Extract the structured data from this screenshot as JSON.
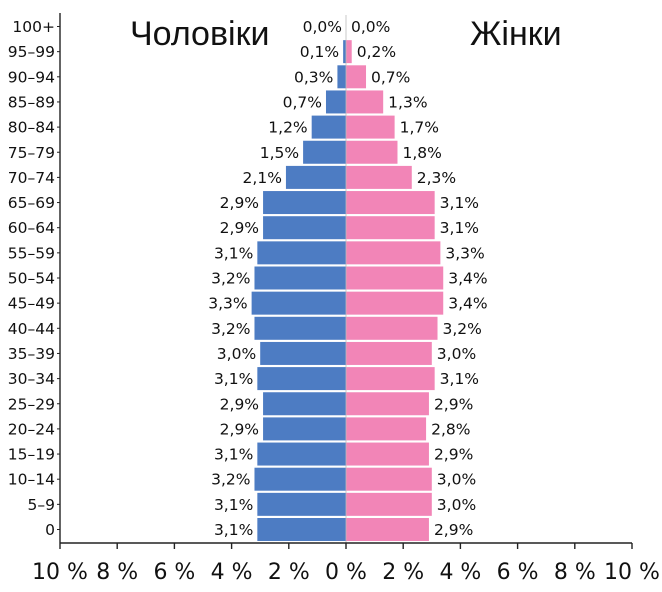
{
  "chart_data": {
    "type": "bar",
    "orientation": "horizontal",
    "layout": "population-pyramid",
    "categories": [
      "100+",
      "95–99",
      "90–94",
      "85–89",
      "80–84",
      "75–79",
      "70–74",
      "65–69",
      "60–64",
      "55–59",
      "50–54",
      "45–49",
      "40–44",
      "35–39",
      "30–34",
      "25–29",
      "20–24",
      "15–19",
      "10–14",
      "5–9",
      "0"
    ],
    "series": [
      {
        "name": "Чоловіки",
        "side": "left",
        "color": "#4d7cc3",
        "values": [
          0.0,
          0.1,
          0.3,
          0.7,
          1.2,
          1.5,
          2.1,
          2.9,
          2.9,
          3.1,
          3.2,
          3.3,
          3.2,
          3.0,
          3.1,
          2.9,
          2.9,
          3.1,
          3.2,
          3.1,
          3.1
        ],
        "labels": [
          "0,0%",
          "0,1%",
          "0,3%",
          "0,7%",
          "1,2%",
          "1,5%",
          "2,1%",
          "2,9%",
          "2,9%",
          "3,1%",
          "3,2%",
          "3,3%",
          "3,2%",
          "3,0%",
          "3,1%",
          "2,9%",
          "2,9%",
          "3,1%",
          "3,2%",
          "3,1%",
          "3,1%"
        ]
      },
      {
        "name": "Жінки",
        "side": "right",
        "color": "#f285b7",
        "values": [
          0.0,
          0.2,
          0.7,
          1.3,
          1.7,
          1.8,
          2.3,
          3.1,
          3.1,
          3.3,
          3.4,
          3.4,
          3.2,
          3.0,
          3.1,
          2.9,
          2.8,
          2.9,
          3.0,
          3.0,
          2.9
        ],
        "labels": [
          "0,0%",
          "0,2%",
          "0,7%",
          "1,3%",
          "1,7%",
          "1,8%",
          "2,3%",
          "3,1%",
          "3,1%",
          "3,3%",
          "3,4%",
          "3,4%",
          "3,2%",
          "3,0%",
          "3,1%",
          "2,9%",
          "2,8%",
          "2,9%",
          "3,0%",
          "3,0%",
          "2,9%"
        ]
      }
    ],
    "xlim": [
      -10,
      10
    ],
    "xticks": [
      -10,
      -8,
      -6,
      -4,
      -2,
      0,
      2,
      4,
      6,
      8,
      10
    ],
    "xtick_labels": [
      "10 %",
      "8 %",
      "6 %",
      "4 %",
      "2 %",
      "0 %",
      "2 %",
      "4 %",
      "6 %",
      "8 %",
      "10 %"
    ],
    "title_left": "Чоловіки",
    "title_right": "Жінки",
    "grid": false
  }
}
